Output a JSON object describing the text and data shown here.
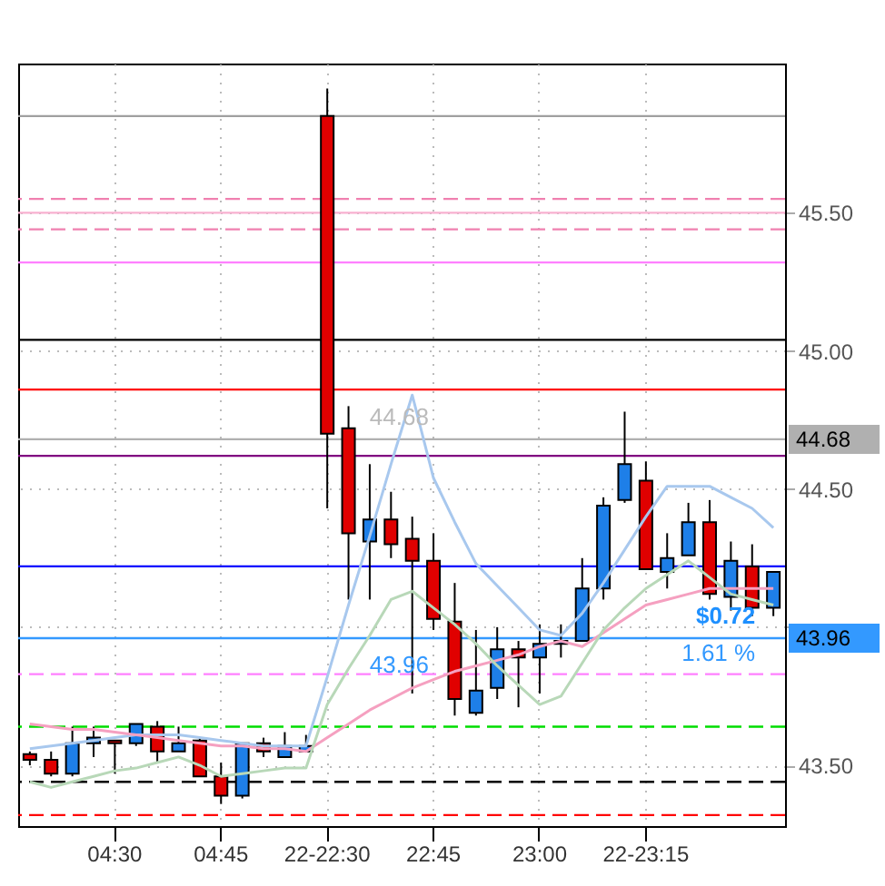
{
  "chart_data": {
    "type": "candlestick",
    "categories": [
      null,
      null,
      null,
      null,
      "04:30",
      null,
      null,
      null,
      null,
      "04:45",
      null,
      null,
      null,
      null,
      "22-22:30",
      null,
      null,
      null,
      null,
      "22:45",
      null,
      null,
      null,
      null,
      "23:00",
      null,
      null,
      null,
      null,
      "22-23:15",
      null,
      null,
      null,
      null,
      null,
      null
    ],
    "ohlc": [
      [
        43.54,
        43.55,
        43.5,
        43.52
      ],
      [
        43.52,
        43.55,
        43.46,
        43.47
      ],
      [
        43.47,
        43.64,
        43.46,
        43.58
      ],
      [
        43.58,
        43.64,
        43.53,
        43.6
      ],
      [
        43.59,
        43.59,
        43.47,
        43.58
      ],
      [
        43.58,
        43.65,
        43.57,
        43.65
      ],
      [
        43.64,
        43.66,
        43.51,
        43.55
      ],
      [
        43.55,
        43.64,
        43.55,
        43.58
      ],
      [
        43.59,
        43.6,
        43.46,
        43.46
      ],
      [
        43.46,
        43.51,
        43.36,
        43.39
      ],
      [
        43.39,
        43.58,
        43.38,
        43.58
      ],
      [
        43.58,
        43.6,
        43.53,
        43.55
      ],
      [
        43.53,
        43.62,
        43.53,
        43.57
      ],
      [
        43.55,
        43.61,
        43.55,
        43.57
      ],
      [
        45.85,
        45.95,
        44.43,
        44.7
      ],
      [
        44.72,
        44.8,
        44.1,
        44.34
      ],
      [
        44.31,
        44.59,
        44.1,
        44.39
      ],
      [
        44.39,
        44.49,
        44.25,
        44.3
      ],
      [
        44.32,
        44.4,
        43.76,
        44.24
      ],
      [
        44.24,
        44.34,
        43.99,
        44.03
      ],
      [
        44.02,
        44.16,
        43.68,
        43.74
      ],
      [
        43.69,
        43.99,
        43.68,
        43.77
      ],
      [
        43.78,
        44.0,
        43.74,
        43.92
      ],
      [
        43.92,
        43.95,
        43.71,
        43.89
      ],
      [
        43.89,
        44.01,
        43.76,
        43.94
      ],
      [
        43.94,
        44.01,
        43.89,
        43.95
      ],
      [
        43.95,
        44.25,
        43.95,
        44.14
      ],
      [
        44.14,
        44.47,
        44.1,
        44.44
      ],
      [
        44.46,
        44.78,
        44.45,
        44.59
      ],
      [
        44.53,
        44.6,
        44.21,
        44.21
      ],
      [
        44.2,
        44.34,
        44.14,
        44.25
      ],
      [
        44.26,
        44.45,
        44.26,
        44.38
      ],
      [
        44.38,
        44.46,
        44.1,
        44.12
      ],
      [
        44.11,
        44.31,
        44.06,
        44.24
      ],
      [
        44.22,
        44.3,
        44.04,
        44.07
      ],
      [
        44.07,
        44.2,
        44.04,
        44.2
      ]
    ],
    "colors": [
      "#e00000",
      "#e00000",
      "#1e7fe8",
      "#1e7fe8",
      "#e00000",
      "#1e7fe8",
      "#e00000",
      "#1e7fe8",
      "#e00000",
      "#e00000",
      "#1e7fe8",
      "#e00000",
      "#1e7fe8",
      "#1e7fe8",
      "#e00000",
      "#e00000",
      "#1e7fe8",
      "#e00000",
      "#e00000",
      "#e00000",
      "#e00000",
      "#1e7fe8",
      "#1e7fe8",
      "#e00000",
      "#1e7fe8",
      "#1e7fe8",
      "#1e7fe8",
      "#1e7fe8",
      "#1e7fe8",
      "#e00000",
      "#1e7fe8",
      "#1e7fe8",
      "#e00000",
      "#1e7fe8",
      "#e00000",
      "#1e7fe8"
    ],
    "series": [
      {
        "type": "line",
        "color": "#a8c8ee",
        "values": [
          43.56,
          43.57,
          43.58,
          43.59,
          43.6,
          43.61,
          43.61,
          43.61,
          43.6,
          43.59,
          43.58,
          43.57,
          43.57,
          43.57,
          43.82,
          44.08,
          44.33,
          44.59,
          44.84,
          44.54,
          44.38,
          44.23,
          44.15,
          44.07,
          43.99,
          43.97,
          44.05,
          44.16,
          44.28,
          44.4,
          44.51,
          44.51,
          44.51,
          44.47,
          44.43,
          44.36
        ]
      },
      {
        "type": "line",
        "color": "#f5a0c0",
        "values": [
          43.65,
          43.64,
          43.63,
          43.63,
          43.62,
          43.61,
          43.6,
          43.59,
          43.58,
          43.57,
          43.57,
          43.56,
          43.56,
          43.55,
          43.6,
          43.65,
          43.7,
          43.74,
          43.78,
          43.81,
          43.84,
          43.86,
          43.88,
          43.9,
          43.93,
          43.95,
          43.93,
          43.98,
          44.03,
          44.08,
          44.1,
          44.12,
          44.14,
          44.14,
          44.14,
          44.14
        ]
      },
      {
        "type": "line",
        "color": "#b8d8b8",
        "values": [
          43.44,
          43.42,
          43.44,
          43.46,
          43.48,
          43.49,
          43.51,
          43.53,
          43.5,
          43.46,
          43.47,
          43.48,
          43.49,
          43.49,
          43.72,
          43.85,
          43.97,
          44.1,
          44.13,
          44.07,
          44.01,
          43.94,
          43.86,
          43.79,
          43.72,
          43.75,
          43.87,
          43.99,
          44.07,
          44.14,
          44.19,
          44.24,
          44.18,
          44.12,
          44.1,
          44.08
        ]
      }
    ],
    "ylim": [
      43.28,
      46.04
    ],
    "yticks": [
      {
        "value": 43.5,
        "label": "43.50"
      },
      {
        "value": 44,
        "label": null
      },
      {
        "value": 44.5,
        "label": "44.50"
      },
      {
        "value": 45,
        "label": "45.00"
      },
      {
        "value": 45.5,
        "label": "45.50"
      }
    ],
    "ref_lines": [
      {
        "axis": "y",
        "value": 45.85,
        "color": "#a0a0a0",
        "line_style": "solid"
      },
      {
        "axis": "y",
        "value": 45.55,
        "color": "#f080b0",
        "line_style": "dashed"
      },
      {
        "axis": "y",
        "value": 45.5,
        "color": "#f8b0d0",
        "line_style": "solid"
      },
      {
        "axis": "y",
        "value": 45.44,
        "color": "#f080b0",
        "line_style": "dashed"
      },
      {
        "axis": "y",
        "value": 45.32,
        "color": "#ff80ff",
        "line_style": "solid"
      },
      {
        "axis": "y",
        "value": 45.04,
        "color": "#000000",
        "line_style": "solid"
      },
      {
        "axis": "y",
        "value": 44.86,
        "color": "#ff0000",
        "line_style": "solid"
      },
      {
        "axis": "y",
        "value": 44.62,
        "color": "#800080",
        "line_style": "solid"
      },
      {
        "axis": "y",
        "value": 44.22,
        "color": "#0000ff",
        "line_style": "solid"
      },
      {
        "axis": "y",
        "value": 43.83,
        "color": "#ff80ff",
        "line_style": "dashed"
      },
      {
        "axis": "y",
        "value": 43.64,
        "color": "#00dd00",
        "line_style": "dashed"
      },
      {
        "axis": "y",
        "value": 43.44,
        "color": "#000000",
        "line_style": "dashed"
      },
      {
        "axis": "y",
        "value": 43.32,
        "color": "#ff0000",
        "line_style": "dashed"
      },
      {
        "axis": "y",
        "value": 44.68,
        "color": "#b0b0b0",
        "line_style": "solid",
        "label": "44.68"
      },
      {
        "axis": "y",
        "value": 43.96,
        "color": "#3399ff",
        "line_style": "solid",
        "label": "43.96"
      }
    ],
    "annotations": [
      "44.68",
      "43.96",
      "$0.72",
      "1.61 %"
    ],
    "grid": true
  }
}
